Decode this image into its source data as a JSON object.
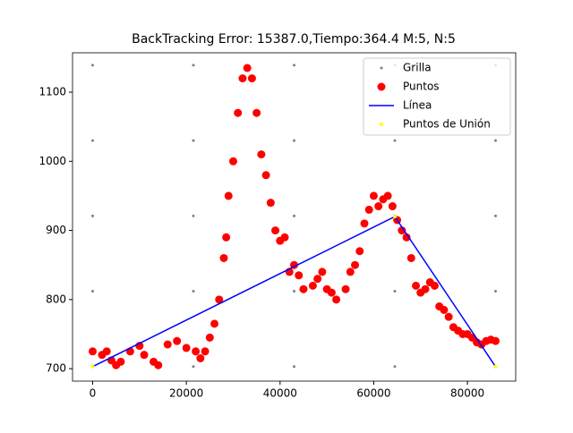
{
  "chart_data": {
    "type": "scatter",
    "title": "BackTracking Error: 15387.0,Tiempo:364.4  M:5, N:5",
    "xlim": [
      -4300,
      90300
    ],
    "ylim": [
      682,
      1157
    ],
    "xticks": [
      0,
      20000,
      40000,
      60000,
      80000
    ],
    "yticks": [
      700,
      800,
      900,
      1000,
      1100
    ],
    "legend": "upper right",
    "series": [
      {
        "name": "Grilla",
        "color": "#808080",
        "kind": "points",
        "size": 1.5,
        "x": [
          0,
          0,
          0,
          0,
          0,
          21500,
          21500,
          21500,
          21500,
          21500,
          43000,
          43000,
          43000,
          43000,
          43000,
          64500,
          64500,
          64500,
          64500,
          64500,
          86000,
          86000,
          86000,
          86000,
          86000
        ],
        "values": [
          703,
          812,
          921,
          1030,
          1139,
          703,
          812,
          921,
          1030,
          1139,
          703,
          812,
          921,
          1030,
          1139,
          703,
          812,
          921,
          1030,
          1139,
          703,
          812,
          921,
          1030,
          1139
        ]
      },
      {
        "name": "Puntos",
        "color": "#ff0000",
        "kind": "points",
        "size": 4.5,
        "x": [
          0,
          2000,
          3000,
          4000,
          5000,
          6000,
          8000,
          10000,
          11000,
          13000,
          14000,
          16000,
          18000,
          20000,
          22000,
          23000,
          24000,
          25000,
          26000,
          27000,
          28000,
          28500,
          29000,
          30000,
          31000,
          32000,
          33000,
          34000,
          35000,
          36000,
          37000,
          38000,
          39000,
          40000,
          41000,
          42000,
          43000,
          44000,
          45000,
          47000,
          48000,
          49000,
          50000,
          51000,
          52000,
          54000,
          55000,
          56000,
          57000,
          58000,
          59000,
          60000,
          61000,
          62000,
          63000,
          64000,
          65000,
          66000,
          67000,
          68000,
          69000,
          70000,
          71000,
          72000,
          73000,
          74000,
          75000,
          76000,
          77000,
          78000,
          79000,
          80000,
          81000,
          82000,
          83000,
          84000,
          85000,
          86000
        ],
        "values": [
          725,
          720,
          725,
          712,
          705,
          710,
          725,
          733,
          720,
          710,
          705,
          735,
          740,
          730,
          725,
          715,
          725,
          745,
          765,
          800,
          860,
          890,
          950,
          1000,
          1070,
          1120,
          1135,
          1120,
          1070,
          1010,
          980,
          940,
          900,
          885,
          890,
          840,
          850,
          835,
          815,
          820,
          830,
          840,
          815,
          810,
          800,
          815,
          840,
          850,
          870,
          910,
          930,
          950,
          935,
          945,
          950,
          935,
          915,
          900,
          890,
          860,
          820,
          810,
          815,
          825,
          820,
          790,
          785,
          775,
          760,
          755,
          750,
          750,
          745,
          738,
          735,
          740,
          742,
          740
        ]
      },
      {
        "name": "Línea",
        "color": "#0000ff",
        "kind": "line",
        "x": [
          0,
          64500,
          86000
        ],
        "values": [
          703,
          920,
          703
        ]
      },
      {
        "name": "Puntos de Unión",
        "color": "#ffff00",
        "kind": "points",
        "size": 2,
        "x": [
          0,
          64500,
          86000
        ],
        "values": [
          703,
          920,
          703
        ]
      }
    ]
  }
}
